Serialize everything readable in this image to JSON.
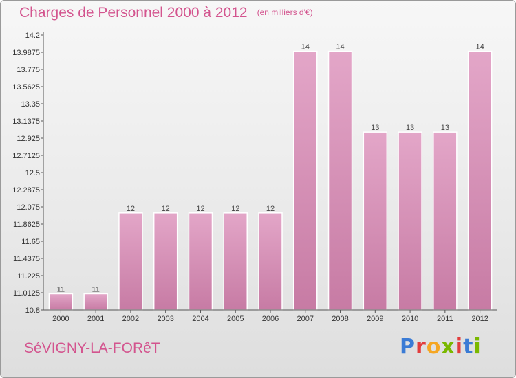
{
  "header": {
    "title": "Charges de Personnel 2000 à 2012",
    "subtitle": "(en milliers d'€)"
  },
  "footer": {
    "commune": "SéVIGNY-LA-FORêT",
    "logo_letters": [
      "P",
      "r",
      "o",
      "x",
      "i",
      "t",
      "i"
    ],
    "logo_colors": [
      "#3a7bd5",
      "#e23c3c",
      "#f5a623",
      "#7ab800",
      "#e23c3c",
      "#3a7bd5",
      "#7ab800"
    ]
  },
  "colors": {
    "bar": "#c77ba4",
    "bar_light": "#e3a6c8",
    "axis": "#555555",
    "accent": "#d3548e"
  },
  "chart_data": {
    "type": "bar",
    "categories": [
      "2000",
      "2001",
      "2002",
      "2003",
      "2004",
      "2005",
      "2006",
      "2007",
      "2008",
      "2009",
      "2010",
      "2011",
      "2012"
    ],
    "values": [
      11,
      11,
      12,
      12,
      12,
      12,
      12,
      14,
      14,
      13,
      13,
      13,
      14
    ],
    "data_labels": [
      "11",
      "11",
      "12",
      "12",
      "12",
      "12",
      "12",
      "14",
      "14",
      "13",
      "13",
      "13",
      "14"
    ],
    "yticks": [
      10.8,
      11.0125,
      11.225,
      11.4375,
      11.65,
      11.8625,
      12.075,
      12.2875,
      12.5,
      12.7125,
      12.925,
      13.1375,
      13.35,
      13.5625,
      13.775,
      13.9875,
      14.2
    ],
    "ytick_labels": [
      "10.8",
      "11.0125",
      "11.225",
      "11.4375",
      "11.65",
      "11.8625",
      "12.075",
      "12.2875",
      "12.5",
      "12.7125",
      "12.925",
      "13.1375",
      "13.35",
      "13.5625",
      "13.775",
      "13.9875",
      "14.2"
    ],
    "ylim": [
      10.8,
      14.2
    ],
    "grid": false,
    "title": "Charges de Personnel 2000 à 2012",
    "xlabel": "",
    "ylabel": ""
  }
}
